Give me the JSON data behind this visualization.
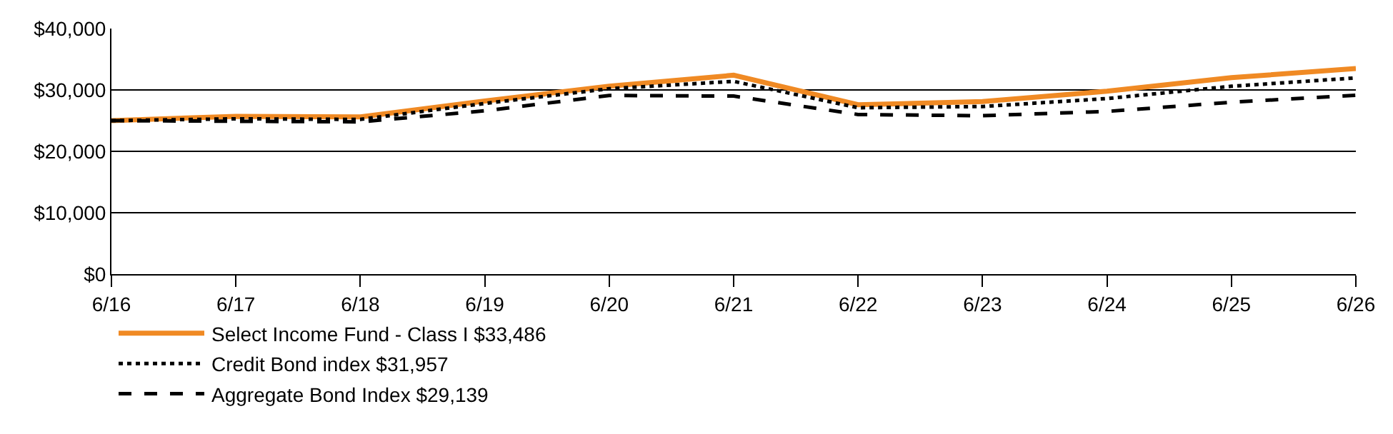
{
  "chart_data": {
    "type": "line",
    "categories": [
      "6/16",
      "6/17",
      "6/18",
      "6/19",
      "6/20",
      "6/21",
      "6/22",
      "6/23",
      "6/24",
      "6/25",
      "6/26"
    ],
    "series": [
      {
        "name": "Select Income Fund - Class I $33,486",
        "color": "#f08a24",
        "line_style": "solid",
        "values": [
          25000,
          25700,
          25600,
          28200,
          30600,
          32400,
          27600,
          28100,
          29800,
          32000,
          33486
        ]
      },
      {
        "name": "Credit Bond index $31,957",
        "color": "#000000",
        "line_style": "dotted",
        "values": [
          25000,
          25300,
          25200,
          27800,
          30200,
          31400,
          27100,
          27300,
          28600,
          30600,
          31957
        ]
      },
      {
        "name": "Aggregate Bond Index $29,139",
        "color": "#000000",
        "line_style": "dashed",
        "values": [
          25000,
          24900,
          24800,
          26600,
          29100,
          29000,
          26000,
          25800,
          26500,
          28000,
          29139
        ]
      }
    ],
    "ylim": [
      0,
      40000
    ],
    "yticks": [
      {
        "value": 0,
        "label": "$0"
      },
      {
        "value": 10000,
        "label": "$10,000"
      },
      {
        "value": 20000,
        "label": "$20,000"
      },
      {
        "value": 30000,
        "label": "$30,000"
      },
      {
        "value": 40000,
        "label": "$40,000"
      }
    ],
    "grid": "y",
    "legend": "bottom",
    "marker": "none"
  }
}
